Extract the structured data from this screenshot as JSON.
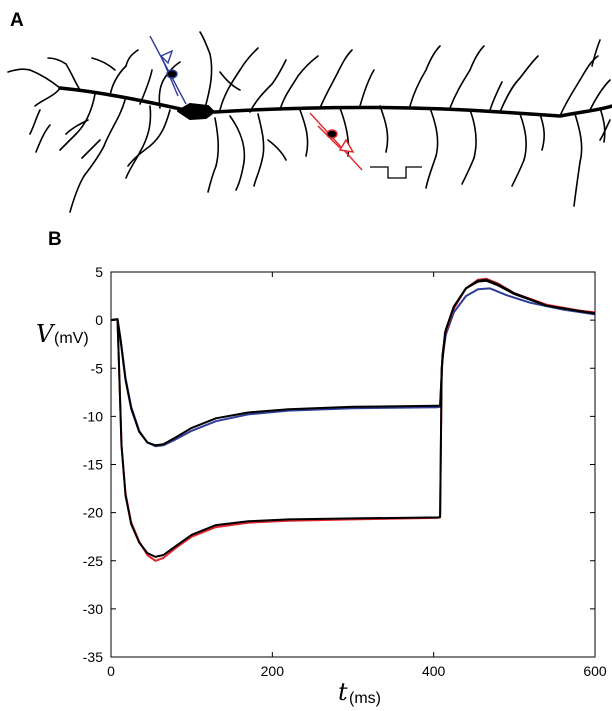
{
  "panels": {
    "a_label": "A",
    "b_label": "B",
    "neuron_image": "pyramidal-neuron-morphology"
  },
  "electrodes": {
    "recording_color": "#2e3d99",
    "stimulus_color": "#e0262b",
    "stimulus_waveform": "square-pulse-negative"
  },
  "chart_data": {
    "type": "line",
    "xlabel_symbol": "t",
    "xlabel_unit": "(ms)",
    "ylabel_symbol": "V",
    "ylabel_unit": "(mV)",
    "xlim": [
      0,
      600
    ],
    "ylim": [
      -35,
      5
    ],
    "xticks": [
      0,
      200,
      400,
      600
    ],
    "yticks": [
      5,
      0,
      -5,
      -10,
      -15,
      -20,
      -25,
      -30,
      -35
    ],
    "grid": false,
    "series": [
      {
        "color": "#2e3d99",
        "points": [
          [
            0,
            0
          ],
          [
            8,
            0.1
          ],
          [
            12,
            -2
          ],
          [
            18,
            -6
          ],
          [
            25,
            -9
          ],
          [
            35,
            -11.5
          ],
          [
            45,
            -12.7
          ],
          [
            55,
            -13.1
          ],
          [
            65,
            -13
          ],
          [
            80,
            -12.4
          ],
          [
            100,
            -11.5
          ],
          [
            130,
            -10.5
          ],
          [
            170,
            -9.8
          ],
          [
            220,
            -9.4
          ],
          [
            300,
            -9.15
          ],
          [
            405,
            -9.05
          ],
          [
            408,
            -9
          ],
          [
            411,
            -4
          ],
          [
            415,
            -1.5
          ],
          [
            425,
            0.8
          ],
          [
            440,
            2.5
          ],
          [
            455,
            3.2
          ],
          [
            470,
            3.3
          ],
          [
            490,
            2.6
          ],
          [
            520,
            1.8
          ],
          [
            560,
            1.1
          ],
          [
            600,
            0.6
          ]
        ]
      },
      {
        "color": "#e0262b",
        "points": [
          [
            0,
            0
          ],
          [
            8,
            0.1
          ],
          [
            10,
            -5
          ],
          [
            13,
            -13
          ],
          [
            18,
            -18
          ],
          [
            25,
            -21
          ],
          [
            35,
            -23
          ],
          [
            45,
            -24.4
          ],
          [
            55,
            -25
          ],
          [
            65,
            -24.7
          ],
          [
            80,
            -23.7
          ],
          [
            100,
            -22.5
          ],
          [
            130,
            -21.5
          ],
          [
            170,
            -21.05
          ],
          [
            220,
            -20.85
          ],
          [
            300,
            -20.7
          ],
          [
            405,
            -20.55
          ],
          [
            408,
            -20.5
          ],
          [
            410,
            -5
          ],
          [
            414,
            -1.5
          ],
          [
            425,
            1.2
          ],
          [
            440,
            3.3
          ],
          [
            455,
            4.2
          ],
          [
            465,
            4.3
          ],
          [
            480,
            3.8
          ],
          [
            500,
            2.8
          ],
          [
            540,
            1.6
          ],
          [
            580,
            1.0
          ],
          [
            600,
            0.8
          ]
        ]
      },
      {
        "color": "#000000",
        "points": [
          [
            0,
            0
          ],
          [
            8,
            0.1
          ],
          [
            12,
            -2.2
          ],
          [
            18,
            -6.2
          ],
          [
            25,
            -9.2
          ],
          [
            35,
            -11.6
          ],
          [
            45,
            -12.7
          ],
          [
            55,
            -13.0
          ],
          [
            65,
            -12.9
          ],
          [
            80,
            -12.2
          ],
          [
            100,
            -11.2
          ],
          [
            130,
            -10.2
          ],
          [
            170,
            -9.6
          ],
          [
            220,
            -9.25
          ],
          [
            300,
            -9.0
          ],
          [
            405,
            -8.9
          ],
          [
            408,
            -8.9
          ],
          [
            411,
            -3.6
          ],
          [
            415,
            -1
          ],
          [
            425,
            1.4
          ],
          [
            440,
            3.3
          ],
          [
            455,
            4.0
          ],
          [
            465,
            4.1
          ],
          [
            480,
            3.6
          ],
          [
            500,
            2.7
          ],
          [
            540,
            1.5
          ],
          [
            580,
            0.95
          ],
          [
            600,
            0.7
          ]
        ]
      },
      {
        "color": "#000000",
        "points": [
          [
            0,
            0
          ],
          [
            8,
            0.1
          ],
          [
            10,
            -5
          ],
          [
            13,
            -13
          ],
          [
            18,
            -18.2
          ],
          [
            25,
            -21.2
          ],
          [
            35,
            -23.1
          ],
          [
            45,
            -24.2
          ],
          [
            55,
            -24.6
          ],
          [
            65,
            -24.4
          ],
          [
            80,
            -23.5
          ],
          [
            100,
            -22.3
          ],
          [
            130,
            -21.3
          ],
          [
            170,
            -20.9
          ],
          [
            220,
            -20.7
          ],
          [
            300,
            -20.6
          ],
          [
            405,
            -20.5
          ],
          [
            408,
            -20.45
          ],
          [
            410,
            -5
          ],
          [
            414,
            -1.3
          ],
          [
            425,
            1.4
          ],
          [
            440,
            3.3
          ],
          [
            455,
            4.1
          ],
          [
            465,
            4.2
          ],
          [
            480,
            3.7
          ],
          [
            500,
            2.8
          ],
          [
            540,
            1.5
          ],
          [
            580,
            0.95
          ],
          [
            600,
            0.7
          ]
        ]
      }
    ]
  }
}
